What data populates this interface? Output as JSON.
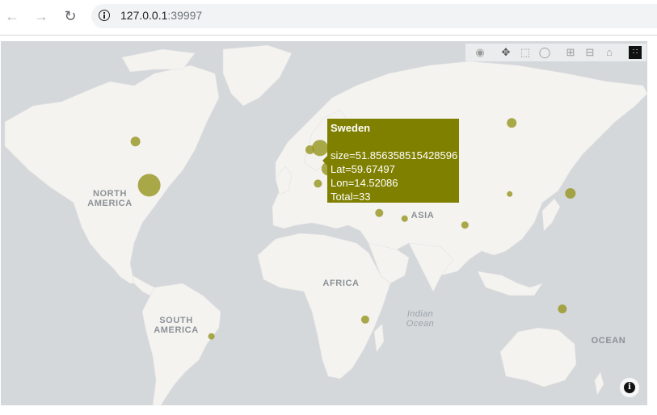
{
  "browser": {
    "url_host": "127.0.0.1",
    "url_port": ":39997",
    "back_icon": "arrow-left-icon",
    "forward_icon": "arrow-right-icon",
    "reload_icon": "reload-icon"
  },
  "modebar": {
    "buttons": [
      "camera-icon",
      "pan-icon",
      "box-select-icon",
      "lasso-icon",
      "zoom-in-icon",
      "zoom-out-icon",
      "reset-home-icon",
      "plotly-logo-icon"
    ]
  },
  "map": {
    "land_color": "#f4f3f0",
    "water_color": "#d5d8db",
    "marker_color": "#9a9a2a",
    "labels": {
      "north_america": [
        "NORTH",
        "AMERICA"
      ],
      "south_america": [
        "SOUTH",
        "AMERICA"
      ],
      "africa": "AFRICA",
      "asia": "ASIA",
      "indian_ocean": [
        "Indian",
        "Ocean"
      ],
      "ocean": "OCEAN"
    }
  },
  "tooltip": {
    "title": "Sweden",
    "size_line": "size=51.856358515428596",
    "lat_line": "Lat=59.67497",
    "lon_line": "Lon=14.52086",
    "total_line": "Total=33",
    "bg_color": "#808000"
  },
  "chart_data": {
    "type": "scatter",
    "hover": {
      "name": "Sweden",
      "size": 51.856358515428596,
      "lat": 59.67497,
      "lon": 14.52086,
      "total": 33
    },
    "points": [
      {
        "lat": 39.8,
        "lon": -98.6,
        "size": 28
      },
      {
        "lat": 56.1,
        "lon": -106.3,
        "size": 12
      },
      {
        "lat": -38.4,
        "lon": -63.6,
        "size": 8
      },
      {
        "lat": 54.0,
        "lon": -2.5,
        "size": 20
      },
      {
        "lat": 53.4,
        "lon": -8.2,
        "size": 11
      },
      {
        "lat": 51.2,
        "lon": 10.4,
        "size": 24
      },
      {
        "lat": 46.6,
        "lon": 2.2,
        "size": 17
      },
      {
        "lat": 52.1,
        "lon": 5.3,
        "size": 11
      },
      {
        "lat": 50.5,
        "lon": 4.5,
        "size": 9
      },
      {
        "lat": 56.3,
        "lon": 9.5,
        "size": 11
      },
      {
        "lat": 60.5,
        "lon": 8.5,
        "size": 11
      },
      {
        "lat": 59.67497,
        "lon": 14.52086,
        "size": 14
      },
      {
        "lat": 46.8,
        "lon": 8.2,
        "size": 11
      },
      {
        "lat": 47.5,
        "lon": 14.6,
        "size": 11
      },
      {
        "lat": 49.8,
        "lon": 15.5,
        "size": 10
      },
      {
        "lat": 51.9,
        "lon": 19.1,
        "size": 8
      },
      {
        "lat": 41.9,
        "lon": 12.6,
        "size": 12
      },
      {
        "lat": 40.5,
        "lon": -3.7,
        "size": 10
      },
      {
        "lat": 61.5,
        "lon": 105.3,
        "size": 12
      },
      {
        "lat": 36.2,
        "lon": 138.3,
        "size": 13
      },
      {
        "lat": 35.9,
        "lon": 104.2,
        "size": 7
      },
      {
        "lat": 20.6,
        "lon": 79.0,
        "size": 9
      },
      {
        "lat": 26.8,
        "lon": 30.8,
        "size": 10
      },
      {
        "lat": 23.9,
        "lon": 45.1,
        "size": 8
      },
      {
        "lat": -30.6,
        "lon": 22.9,
        "size": 10
      },
      {
        "lat": -25.3,
        "lon": 133.8,
        "size": 11
      }
    ]
  }
}
